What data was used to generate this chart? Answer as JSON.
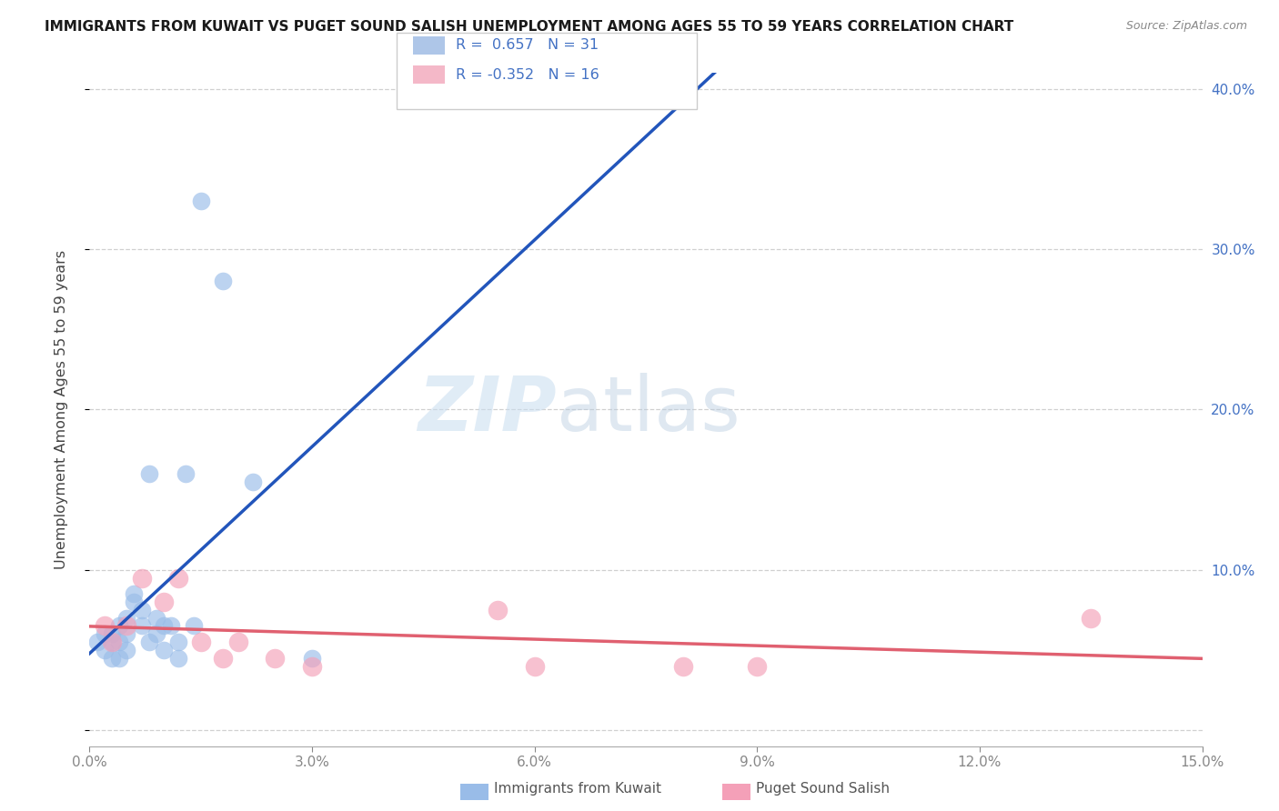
{
  "title": "IMMIGRANTS FROM KUWAIT VS PUGET SOUND SALISH UNEMPLOYMENT AMONG AGES 55 TO 59 YEARS CORRELATION CHART",
  "source": "Source: ZipAtlas.com",
  "ylabel": "Unemployment Among Ages 55 to 59 years",
  "xlim": [
    0.0,
    0.15
  ],
  "ylim": [
    -0.01,
    0.41
  ],
  "xticks": [
    0.0,
    0.03,
    0.06,
    0.09,
    0.12,
    0.15
  ],
  "yticks": [
    0.0,
    0.1,
    0.2,
    0.3,
    0.4
  ],
  "xtick_labels": [
    "0.0%",
    "3.0%",
    "6.0%",
    "9.0%",
    "12.0%",
    "15.0%"
  ],
  "ytick_labels": [
    "",
    "10.0%",
    "20.0%",
    "30.0%",
    "40.0%"
  ],
  "background_color": "#ffffff",
  "watermark": "ZIPatlas",
  "legend_r1": "R =  0.657",
  "legend_n1": "N = 31",
  "legend_r2": "R = -0.352",
  "legend_n2": "N = 16",
  "legend_color1": "#aec6e8",
  "legend_color2": "#f4b8c8",
  "legend_text_color": "#4472c4",
  "blue_scatter_x": [
    0.001,
    0.002,
    0.002,
    0.003,
    0.003,
    0.003,
    0.004,
    0.004,
    0.004,
    0.005,
    0.005,
    0.005,
    0.006,
    0.006,
    0.007,
    0.007,
    0.008,
    0.008,
    0.009,
    0.009,
    0.01,
    0.01,
    0.011,
    0.012,
    0.012,
    0.013,
    0.014,
    0.015,
    0.018,
    0.022,
    0.03
  ],
  "blue_scatter_y": [
    0.055,
    0.05,
    0.06,
    0.055,
    0.045,
    0.06,
    0.065,
    0.055,
    0.045,
    0.07,
    0.06,
    0.05,
    0.08,
    0.085,
    0.075,
    0.065,
    0.16,
    0.055,
    0.07,
    0.06,
    0.05,
    0.065,
    0.065,
    0.055,
    0.045,
    0.16,
    0.065,
    0.33,
    0.28,
    0.155,
    0.045
  ],
  "pink_scatter_x": [
    0.002,
    0.003,
    0.005,
    0.007,
    0.01,
    0.012,
    0.015,
    0.018,
    0.02,
    0.025,
    0.03,
    0.055,
    0.06,
    0.08,
    0.09,
    0.135
  ],
  "pink_scatter_y": [
    0.065,
    0.055,
    0.065,
    0.095,
    0.08,
    0.095,
    0.055,
    0.045,
    0.055,
    0.045,
    0.04,
    0.075,
    0.04,
    0.04,
    0.04,
    0.07
  ],
  "blue_line_color": "#2255bb",
  "pink_line_color": "#e06070",
  "blue_scatter_color": "#99bce8",
  "pink_scatter_color": "#f4a0b8",
  "grid_color": "#d0d0d0",
  "dashed_line_color": "#aabbdd",
  "right_ytick_color": "#4472c4",
  "axis_tick_color": "#888888"
}
